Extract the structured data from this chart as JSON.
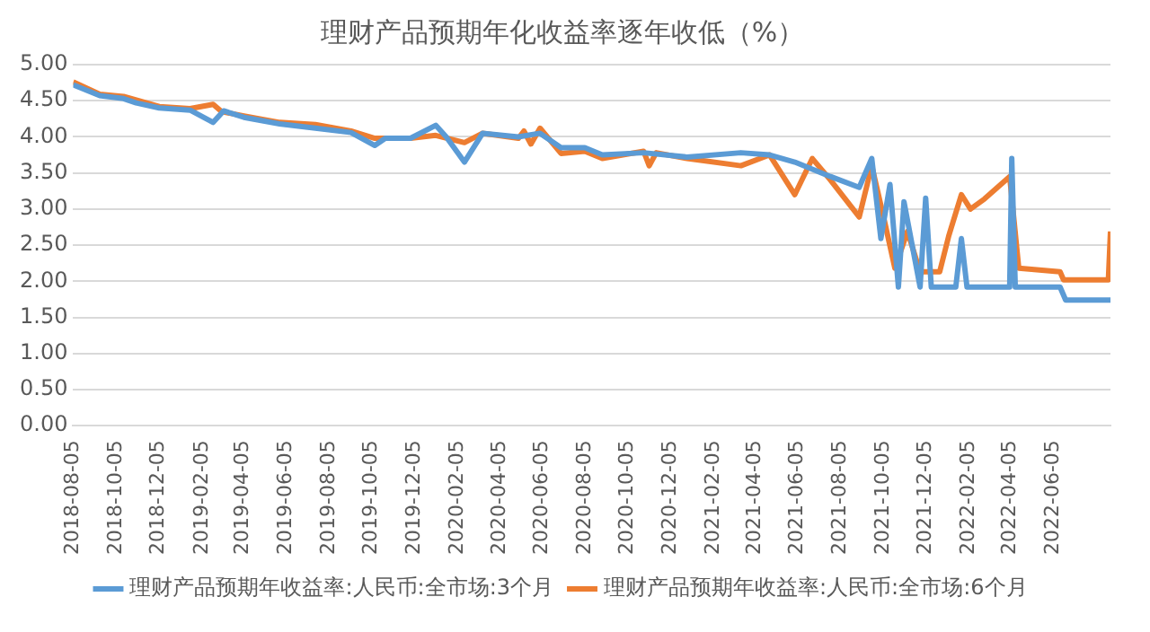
{
  "chart_data": {
    "type": "line",
    "title": "理财产品预期年化收益率逐年收低（%）",
    "xlim": [
      "2018-08-05",
      "2022-08-26"
    ],
    "xticks": [
      "2018-08-05",
      "2018-10-05",
      "2018-12-05",
      "2019-02-05",
      "2019-04-05",
      "2019-06-05",
      "2019-08-05",
      "2019-10-05",
      "2019-12-05",
      "2020-02-05",
      "2020-04-05",
      "2020-06-05",
      "2020-08-05",
      "2020-10-05",
      "2020-12-05",
      "2021-02-05",
      "2021-04-05",
      "2021-06-05",
      "2021-08-05",
      "2021-10-05",
      "2021-12-05",
      "2022-02-05",
      "2022-04-05",
      "2022-06-05"
    ],
    "ylim": [
      0,
      5
    ],
    "yticks": [
      {
        "value": 0,
        "label": "0.00"
      },
      {
        "value": 0.5,
        "label": "0.50"
      },
      {
        "value": 1,
        "label": "1.00"
      },
      {
        "value": 1.5,
        "label": "1.50"
      },
      {
        "value": 2,
        "label": "2.00"
      },
      {
        "value": 2.5,
        "label": "2.50"
      },
      {
        "value": 3,
        "label": "3.00"
      },
      {
        "value": 3.5,
        "label": "3.50"
      },
      {
        "value": 4,
        "label": "4.00"
      },
      {
        "value": 4.5,
        "label": "4.50"
      },
      {
        "value": 5,
        "label": "5.00"
      }
    ],
    "grid": "y",
    "legend": "bottom",
    "marker": "none",
    "line_style": "solid",
    "series": [
      {
        "name": "理财产品预期年收益率:人民币:全市场:3个月",
        "color": "#5b9bd5",
        "x": [
          "2018-08-05",
          "2018-09-12",
          "2018-10-16",
          "2018-11-03",
          "2018-12-06",
          "2019-01-19",
          "2019-02-21",
          "2019-03-08",
          "2019-04-06",
          "2019-05-27",
          "2019-07-17",
          "2019-09-06",
          "2019-10-10",
          "2019-10-25",
          "2019-11-30",
          "2020-01-05",
          "2020-01-20",
          "2020-02-15",
          "2020-03-12",
          "2020-05-02",
          "2020-06-02",
          "2020-07-02",
          "2020-08-05",
          "2020-08-30",
          "2020-10-28",
          "2020-12-29",
          "2021-03-16",
          "2021-04-26",
          "2021-06-01",
          "2021-07-22",
          "2021-09-01",
          "2021-09-19",
          "2021-10-02",
          "2021-10-15",
          "2021-10-27",
          "2021-11-04",
          "2021-11-27",
          "2021-12-05",
          "2021-12-13",
          "2022-01-17",
          "2022-01-25",
          "2022-02-02",
          "2022-04-04",
          "2022-04-07",
          "2022-04-12",
          "2022-06-15",
          "2022-06-23",
          "2022-08-26"
        ],
        "values": [
          4.72,
          4.57,
          4.53,
          4.47,
          4.4,
          4.37,
          4.2,
          4.36,
          4.27,
          4.18,
          4.12,
          4.06,
          3.88,
          3.98,
          3.98,
          4.16,
          4.0,
          3.65,
          4.05,
          4.0,
          4.05,
          3.85,
          3.85,
          3.75,
          3.78,
          3.72,
          3.78,
          3.75,
          3.65,
          3.45,
          3.3,
          3.7,
          2.59,
          3.34,
          1.92,
          3.1,
          1.92,
          3.15,
          1.92,
          1.92,
          2.59,
          1.92,
          1.92,
          3.7,
          1.92,
          1.92,
          1.74,
          1.74
        ]
      },
      {
        "name": "理财产品预期年收益率:人民币:全市场:6个月",
        "color": "#ed7d31",
        "x": [
          "2018-08-05",
          "2018-09-12",
          "2018-10-16",
          "2018-12-06",
          "2019-01-19",
          "2019-02-21",
          "2019-03-05",
          "2019-04-06",
          "2019-05-27",
          "2019-07-17",
          "2019-09-06",
          "2019-10-10",
          "2019-11-30",
          "2020-01-05",
          "2020-02-15",
          "2020-03-12",
          "2020-05-02",
          "2020-05-10",
          "2020-05-20",
          "2020-06-02",
          "2020-07-02",
          "2020-08-05",
          "2020-08-30",
          "2020-10-28",
          "2020-11-05",
          "2020-11-15",
          "2020-12-29",
          "2021-03-16",
          "2021-04-26",
          "2021-06-01",
          "2021-06-26",
          "2021-07-22",
          "2021-09-01",
          "2021-09-19",
          "2021-10-07",
          "2021-10-22",
          "2021-11-09",
          "2021-11-27",
          "2021-12-25",
          "2022-01-07",
          "2022-01-25",
          "2022-02-07",
          "2022-02-27",
          "2022-04-04",
          "2022-04-17",
          "2022-06-15",
          "2022-06-20",
          "2022-08-23",
          "2022-08-26"
        ],
        "values": [
          4.76,
          4.59,
          4.56,
          4.42,
          4.39,
          4.45,
          4.35,
          4.29,
          4.2,
          4.17,
          4.08,
          3.98,
          3.98,
          4.02,
          3.92,
          4.05,
          3.98,
          4.08,
          3.9,
          4.12,
          3.77,
          3.8,
          3.7,
          3.8,
          3.6,
          3.78,
          3.7,
          3.6,
          3.75,
          3.2,
          3.7,
          3.4,
          2.89,
          3.6,
          2.84,
          2.18,
          2.69,
          2.13,
          2.13,
          2.63,
          3.2,
          3.0,
          3.14,
          3.45,
          2.18,
          2.13,
          2.02,
          2.02,
          2.69
        ]
      }
    ]
  }
}
